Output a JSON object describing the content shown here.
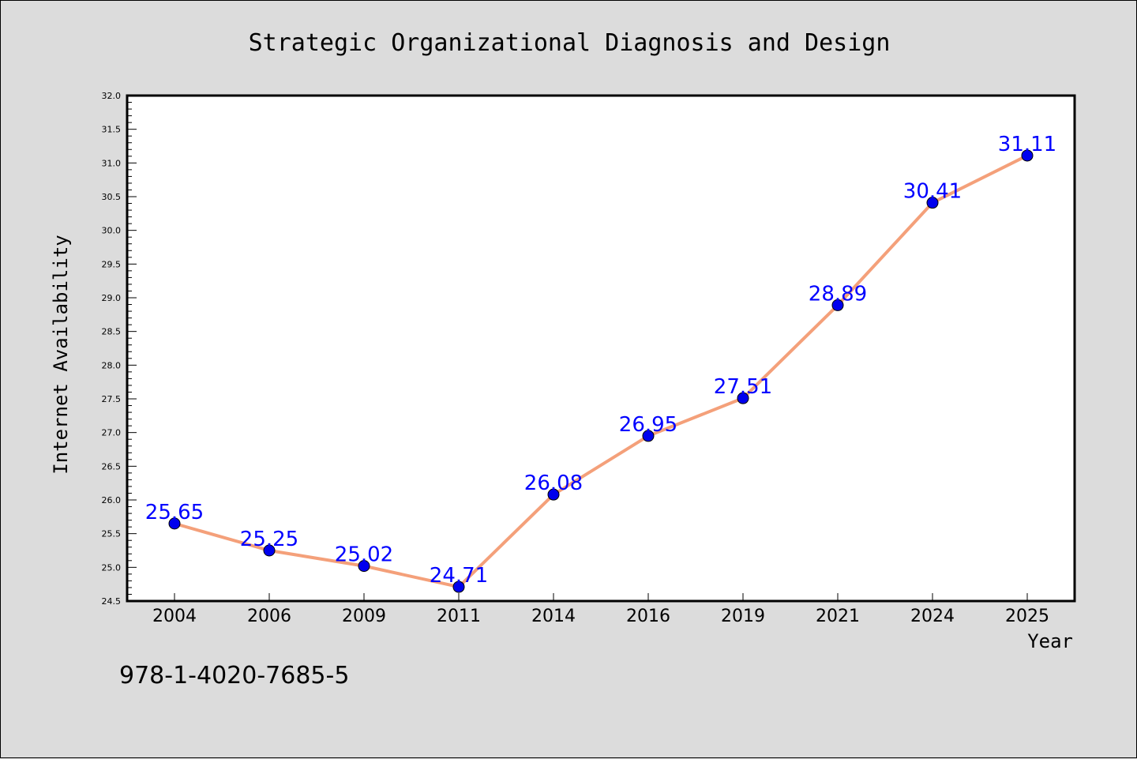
{
  "chart_data": {
    "type": "line",
    "title": "Strategic Organizational Diagnosis and Design",
    "xlabel": "Year",
    "ylabel": "Internet Availability",
    "categories": [
      "2004",
      "2006",
      "2009",
      "2011",
      "2014",
      "2016",
      "2019",
      "2021",
      "2024",
      "2025"
    ],
    "series": [
      {
        "values": [
          25.65,
          25.25,
          25.02,
          24.71,
          26.08,
          26.95,
          27.51,
          28.89,
          30.41,
          31.11
        ],
        "line_color": "#f4a07a",
        "marker_color": "#0000ee"
      }
    ],
    "data_labels": [
      "25.65",
      "25.25",
      "25.02",
      "24.71",
      "26.08",
      "26.95",
      "27.51",
      "28.89",
      "30.41",
      "31.11"
    ],
    "ylim": [
      24.5,
      32.0
    ],
    "yticks": [
      "24.5",
      "25.0",
      "25.5",
      "26.0",
      "26.5",
      "27.0",
      "27.5",
      "28.0",
      "28.5",
      "29.0",
      "29.5",
      "30.0",
      "30.5",
      "31.0",
      "31.5",
      "32.0"
    ],
    "grid": false,
    "legend": "none",
    "label_color": "#0000ff"
  },
  "footer": {
    "isbn": "978-1-4020-7685-5"
  }
}
